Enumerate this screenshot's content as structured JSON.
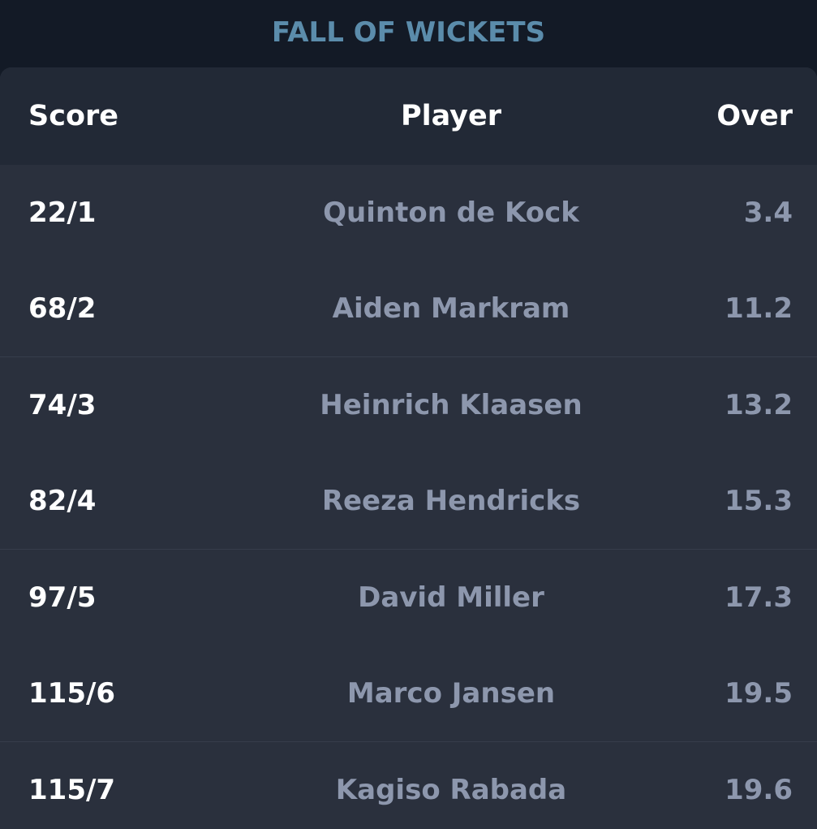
{
  "title": "FALL OF WICKETS",
  "table": {
    "headers": {
      "score": "Score",
      "player": "Player",
      "over": "Over"
    },
    "rows": [
      {
        "score": "22/1",
        "player": "Quinton de Kock",
        "over": "3.4"
      },
      {
        "score": "68/2",
        "player": "Aiden Markram",
        "over": "11.2"
      },
      {
        "score": "74/3",
        "player": "Heinrich Klaasen",
        "over": "13.2"
      },
      {
        "score": "82/4",
        "player": "Reeza Hendricks",
        "over": "15.3"
      },
      {
        "score": "97/5",
        "player": "David Miller",
        "over": "17.3"
      },
      {
        "score": "115/6",
        "player": "Marco Jansen",
        "over": "19.5"
      },
      {
        "score": "115/7",
        "player": "Kagiso Rabada",
        "over": "19.6"
      }
    ]
  },
  "colors": {
    "title": "#5b8cab",
    "header_background": "#222936",
    "panel_background": "#2a303d",
    "page_background": "#131a26",
    "score_text": "#ffffff",
    "muted_text": "#8d97ad"
  }
}
